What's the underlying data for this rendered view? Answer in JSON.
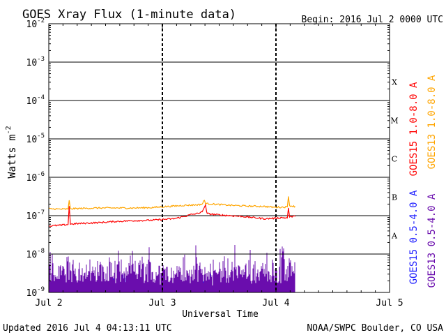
{
  "header": {
    "title": "GOES Xray Flux (1-minute data)",
    "begin": "Begin:  2016 Jul 2 0000 UTC"
  },
  "footer": {
    "updated": "Updated 2016 Jul  4 04:13:11 UTC",
    "credit": "NOAA/SWPC Boulder, CO USA"
  },
  "colors": {
    "goes15_long": "#ff0000",
    "goes13_long": "#ffa500",
    "goes15_short": "#1c1cff",
    "goes13_short": "#6a0dad",
    "grid": "#000000",
    "background": "#ffffff"
  },
  "chart_data": {
    "type": "line",
    "title": "GOES Xray Flux (1-minute data)",
    "xlabel": "Universal Time",
    "ylabel": "Watts m",
    "ylabel_sup": "-2",
    "y_scale": "log",
    "ylim_exp": [
      -9,
      -2
    ],
    "xlim_days": [
      0,
      3
    ],
    "x_ticks": [
      {
        "label": "Jul 2",
        "day": 0
      },
      {
        "label": "Jul 3",
        "day": 1
      },
      {
        "label": "Jul 4",
        "day": 2
      },
      {
        "label": "Jul 5",
        "day": 3
      }
    ],
    "y_ticks": [
      {
        "base": "10",
        "exp": "-9"
      },
      {
        "base": "10",
        "exp": "-8"
      },
      {
        "base": "10",
        "exp": "-7"
      },
      {
        "base": "10",
        "exp": "-6"
      },
      {
        "base": "10",
        "exp": "-5"
      },
      {
        "base": "10",
        "exp": "-4"
      },
      {
        "base": "10",
        "exp": "-3"
      },
      {
        "base": "10",
        "exp": "-2"
      }
    ],
    "flare_classes": [
      {
        "label": "A",
        "exp": -7.5
      },
      {
        "label": "B",
        "exp": -6.5
      },
      {
        "label": "C",
        "exp": -5.5
      },
      {
        "label": "M",
        "exp": -4.5
      },
      {
        "label": "X",
        "exp": -3.5
      }
    ],
    "legend": [
      {
        "label": "GOES15 1.0-8.0 A",
        "color": "#ff0000"
      },
      {
        "label": "GOES13 1.0-8.0 A",
        "color": "#ffa500"
      },
      {
        "label": "GOES15 0.5-4.0 A",
        "color": "#1c1cff"
      },
      {
        "label": "GOES13 0.5-4.0 A",
        "color": "#6a0dad"
      }
    ],
    "series": [
      {
        "name": "GOES13 1.0-8.0 A",
        "color": "#ffa500",
        "days": [
          0,
          0.1,
          0.17,
          0.18,
          0.19,
          0.3,
          0.45,
          0.6,
          0.75,
          0.9,
          1.0,
          1.1,
          1.2,
          1.3,
          1.35,
          1.37,
          1.38,
          1.4,
          1.5,
          1.6,
          1.75,
          1.9,
          1.98,
          2.05,
          2.1,
          2.11,
          2.12,
          2.17
        ],
        "exps": [
          -6.82,
          -6.83,
          -6.83,
          -6.6,
          -6.82,
          -6.81,
          -6.8,
          -6.8,
          -6.8,
          -6.79,
          -6.77,
          -6.75,
          -6.73,
          -6.72,
          -6.7,
          -6.6,
          -6.68,
          -6.69,
          -6.71,
          -6.73,
          -6.75,
          -6.76,
          -6.78,
          -6.78,
          -6.77,
          -6.5,
          -6.74,
          -6.76
        ]
      },
      {
        "name": "GOES15 1.0-8.0 A",
        "color": "#ff0000",
        "days": [
          0,
          0.1,
          0.17,
          0.18,
          0.19,
          0.3,
          0.45,
          0.6,
          0.75,
          0.9,
          1.0,
          1.1,
          1.15,
          1.22,
          1.25,
          1.3,
          1.35,
          1.38,
          1.39,
          1.4,
          1.5,
          1.6,
          1.7,
          1.8,
          1.9,
          1.98,
          2.05,
          2.1,
          2.11,
          2.12,
          2.17
        ],
        "exps": [
          -7.27,
          -7.25,
          -7.23,
          -6.75,
          -7.22,
          -7.2,
          -7.18,
          -7.15,
          -7.13,
          -7.12,
          -7.1,
          -7.08,
          -7.05,
          -7.0,
          -6.97,
          -6.95,
          -6.9,
          -6.72,
          -6.92,
          -6.95,
          -6.98,
          -7.0,
          -7.02,
          -7.05,
          -7.08,
          -7.07,
          -7.05,
          -7.06,
          -6.8,
          -7.03,
          -7.02
        ]
      }
    ],
    "noise_series": [
      {
        "name": "GOES15 0.5-4.0 A",
        "color": "#1c1cff"
      },
      {
        "name": "GOES13 0.5-4.0 A",
        "color": "#6a0dad"
      }
    ]
  }
}
